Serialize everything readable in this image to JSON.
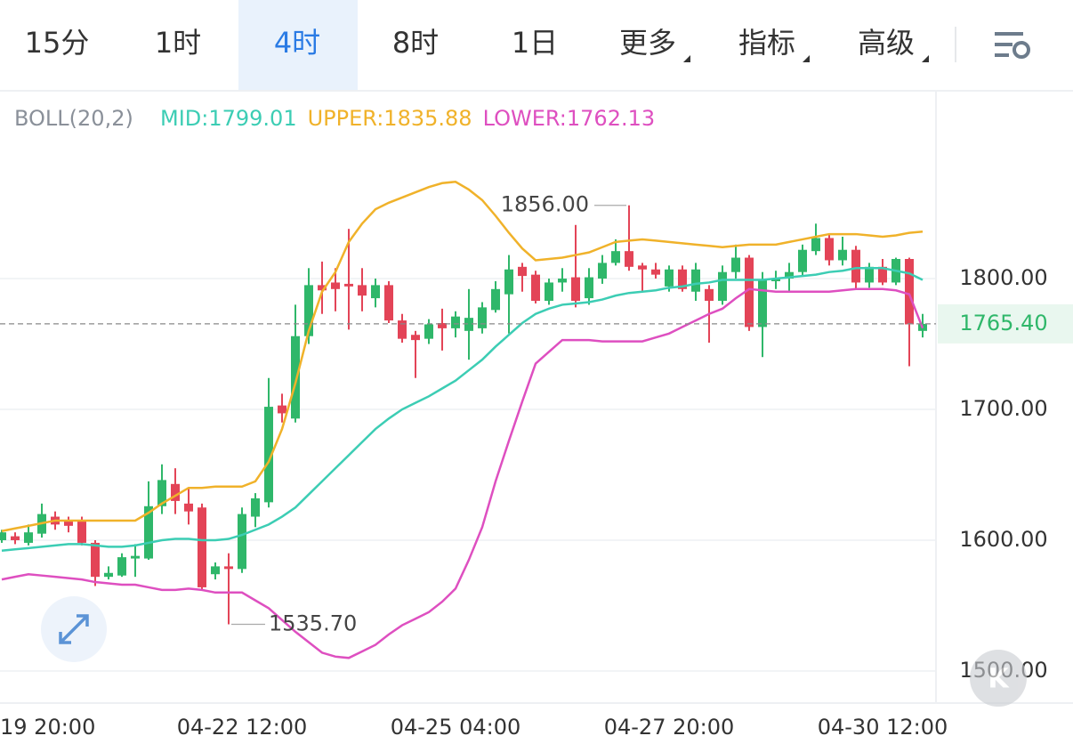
{
  "tabs": {
    "items": [
      "15分",
      "1时",
      "4时",
      "8时",
      "1日",
      "更多",
      "指标",
      "高级"
    ],
    "active": 2
  },
  "chart_data": {
    "type": "candlestick",
    "indicator": "BOLL(20,2)",
    "categories": [
      null,
      null,
      "19 20:00",
      null,
      null,
      null,
      null,
      null,
      null,
      null,
      null,
      null,
      null,
      null,
      null,
      null,
      null,
      null,
      "04-22 12:00",
      null,
      null,
      null,
      null,
      null,
      null,
      null,
      null,
      null,
      null,
      null,
      null,
      null,
      null,
      null,
      "04-25 04:00",
      null,
      null,
      null,
      null,
      null,
      null,
      null,
      null,
      null,
      null,
      null,
      null,
      null,
      null,
      null,
      "04-27 20:00",
      null,
      null,
      null,
      null,
      null,
      null,
      null,
      null,
      null,
      null,
      null,
      null,
      null,
      null,
      null,
      "04-30 12:00",
      null,
      null,
      null
    ],
    "open": [
      1600,
      1603,
      1598,
      1605,
      1618,
      1615,
      1615,
      1598,
      1572,
      1573,
      1586,
      1586,
      1626,
      1643,
      1628,
      1625,
      1574,
      1580,
      1578,
      1618,
      1629,
      1703,
      1693,
      1756,
      1795,
      1797,
      1796,
      1795,
      1785,
      1795,
      1768,
      1757,
      1754,
      1766,
      1762,
      1760,
      1762,
      1776,
      1788,
      1809,
      1803,
      1783,
      1797,
      1801,
      1785,
      1800,
      1812,
      1821,
      1810,
      1807,
      1794,
      1807,
      1790,
      1792,
      1783,
      1805,
      1816,
      1763,
      1798,
      1800,
      1805,
      1821,
      1831,
      1814,
      1822,
      1797,
      1809,
      1797,
      1815,
      1760
    ],
    "high": [
      1608,
      1606,
      1612,
      1628,
      1622,
      1618,
      1618,
      1600,
      1580,
      1590,
      1597,
      1645,
      1658,
      1655,
      1640,
      1628,
      1583,
      1590,
      1625,
      1636,
      1724,
      1712,
      1780,
      1808,
      1813,
      1808,
      1838,
      1808,
      1800,
      1798,
      1773,
      1760,
      1769,
      1777,
      1775,
      1792,
      1782,
      1798,
      1818,
      1812,
      1806,
      1800,
      1808,
      1841,
      1808,
      1818,
      1830,
      1856,
      1812,
      1812,
      1810,
      1810,
      1812,
      1795,
      1810,
      1826,
      1818,
      1805,
      1806,
      1812,
      1826,
      1842,
      1834,
      1832,
      1825,
      1812,
      1815,
      1816,
      1816,
      1773
    ],
    "low": [
      1598,
      1597,
      1596,
      1602,
      1608,
      1606,
      1596,
      1565,
      1570,
      1572,
      1572,
      1585,
      1620,
      1620,
      1612,
      1562,
      1570,
      1535.7,
      1575,
      1610,
      1625,
      1690,
      1690,
      1750,
      1773,
      1775,
      1761,
      1775,
      1778,
      1766,
      1751,
      1724,
      1750,
      1745,
      1755,
      1738,
      1758,
      1774,
      1758,
      1790,
      1781,
      1780,
      1790,
      1778,
      1780,
      1796,
      1810,
      1806,
      1790,
      1800,
      1790,
      1790,
      1783,
      1751,
      1780,
      1800,
      1760,
      1740,
      1792,
      1790,
      1802,
      1818,
      1810,
      1810,
      1792,
      1793,
      1795,
      1795,
      1733,
      1755
    ],
    "close": [
      1606,
      1600,
      1606,
      1620,
      1612,
      1611,
      1598,
      1572,
      1575,
      1587,
      1588,
      1626,
      1646,
      1630,
      1622,
      1564,
      1580,
      1578,
      1620,
      1632,
      1702,
      1697,
      1756,
      1795,
      1791,
      1792,
      1794,
      1787,
      1795,
      1768,
      1754,
      1753,
      1765,
      1762,
      1771,
      1770,
      1778,
      1792,
      1807,
      1802,
      1783,
      1797,
      1800,
      1783,
      1801,
      1812,
      1821,
      1809,
      1807,
      1803,
      1807,
      1792,
      1807,
      1783,
      1805,
      1816,
      1763,
      1799,
      1800,
      1805,
      1822,
      1831,
      1814,
      1822,
      1797,
      1809,
      1797,
      1815,
      1765,
      1765.4
    ],
    "up_color": "#2fb76a",
    "down_color": "#e34457",
    "lines": [
      {
        "name": "MID",
        "legend_label": "MID:1799.01",
        "color": "#3ccdb4",
        "values": [
          1592,
          1593,
          1594,
          1595,
          1596,
          1597,
          1597,
          1596,
          1595,
          1595,
          1596,
          1598,
          1600,
          1601,
          1601,
          1600,
          1600,
          1601,
          1604,
          1608,
          1612,
          1618,
          1625,
          1635,
          1645,
          1655,
          1665,
          1675,
          1685,
          1693,
          1700,
          1705,
          1710,
          1716,
          1722,
          1730,
          1738,
          1748,
          1757,
          1766,
          1773,
          1777,
          1780,
          1781,
          1782,
          1784,
          1787,
          1789,
          1790,
          1791,
          1793,
          1794,
          1796,
          1797,
          1799,
          1799,
          1799,
          1799,
          1800,
          1801,
          1802,
          1803,
          1805,
          1806,
          1808,
          1808,
          1808,
          1806,
          1804,
          1799.01
        ]
      },
      {
        "name": "UPPER",
        "legend_label": "UPPER:1835.88",
        "color": "#f0b22a",
        "values": [
          1607,
          1609,
          1611,
          1613,
          1615,
          1615,
          1615,
          1615,
          1615,
          1615,
          1615,
          1621,
          1628,
          1634,
          1640,
          1640,
          1641,
          1641,
          1641,
          1645,
          1660,
          1685,
          1720,
          1760,
          1790,
          1805,
          1828,
          1842,
          1853,
          1858,
          1862,
          1866,
          1870,
          1873,
          1874,
          1868,
          1860,
          1848,
          1835,
          1823,
          1814,
          1815,
          1816,
          1818,
          1820,
          1824,
          1828,
          1829,
          1830,
          1829,
          1828,
          1827,
          1826,
          1825,
          1824,
          1825,
          1826,
          1826,
          1826,
          1828,
          1830,
          1832,
          1834,
          1834,
          1834,
          1833,
          1832,
          1833,
          1835,
          1835.88
        ]
      },
      {
        "name": "LOWER",
        "legend_label": "LOWER:1762.13",
        "color": "#de4fc0",
        "values": [
          1570,
          1572,
          1574,
          1573,
          1572,
          1571,
          1570,
          1568,
          1567,
          1566,
          1566,
          1564,
          1562,
          1562,
          1563,
          1562,
          1560,
          1560,
          1560,
          1554,
          1548,
          1539,
          1530,
          1522,
          1514,
          1511,
          1510,
          1515,
          1520,
          1528,
          1535,
          1540,
          1545,
          1553,
          1563,
          1585,
          1610,
          1645,
          1676,
          1706,
          1735,
          1744,
          1753,
          1753,
          1753,
          1752,
          1752,
          1752,
          1752,
          1755,
          1758,
          1763,
          1768,
          1773,
          1777,
          1785,
          1792,
          1791,
          1790,
          1790,
          1790,
          1790,
          1790,
          1791,
          1792,
          1792,
          1792,
          1791,
          1788,
          1762.13
        ]
      }
    ],
    "ylim": [
      1475.5,
      1942.9
    ],
    "yticks": [
      {
        "value": 1500,
        "label": "1500.00"
      },
      {
        "value": 1600,
        "label": "1600.00"
      },
      {
        "value": 1700,
        "label": "1700.00"
      },
      {
        "value": 1800,
        "label": "1800.00"
      }
    ],
    "last_price": {
      "value": 1765.4,
      "label": "1765.40"
    },
    "high_mark": {
      "value": 1856,
      "label": "1856.00",
      "index": 47
    },
    "low_mark": {
      "value": 1535.7,
      "label": "1535.70",
      "index": 17
    },
    "grid": true
  }
}
